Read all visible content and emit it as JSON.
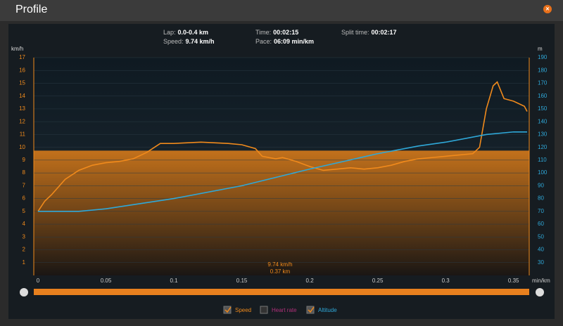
{
  "header": {
    "title": "Profile"
  },
  "stats": [
    {
      "label": "Lap:",
      "value": "0.0-0.4 km"
    },
    {
      "label": "Speed:",
      "value": "9.74 km/h"
    },
    {
      "label": "Time:",
      "value": "00:02:15"
    },
    {
      "label": "Pace:",
      "value": "06:09 min/km"
    },
    {
      "label": "Split time:",
      "value": "00:02:17"
    }
  ],
  "chart_data": {
    "type": "line",
    "y_label": "km/h",
    "y2_label": "m",
    "x_label": "min/km",
    "xlim": [
      0,
      0.36
    ],
    "xticks": [
      0,
      0.05,
      0.1,
      0.15,
      0.2,
      0.25,
      0.3,
      0.35
    ],
    "ylim": [
      0,
      17
    ],
    "yticks": [
      1,
      2,
      3,
      4,
      5,
      6,
      7,
      8,
      9,
      10,
      11,
      12,
      13,
      14,
      15,
      16,
      17
    ],
    "y2lim": [
      20,
      190
    ],
    "y2ticks": [
      30,
      40,
      50,
      60,
      70,
      80,
      90,
      100,
      110,
      120,
      130,
      140,
      150,
      160,
      170,
      180,
      190
    ],
    "average": {
      "value": 9.74,
      "label": "9.74 km/h"
    },
    "annotation": "0.37 km",
    "series": [
      {
        "name": "Speed",
        "color": "#f08a1c",
        "axis": "y",
        "x": [
          0,
          0.005,
          0.01,
          0.02,
          0.03,
          0.04,
          0.05,
          0.06,
          0.07,
          0.08,
          0.09,
          0.1,
          0.12,
          0.14,
          0.15,
          0.16,
          0.165,
          0.175,
          0.18,
          0.19,
          0.2,
          0.21,
          0.22,
          0.23,
          0.24,
          0.25,
          0.26,
          0.27,
          0.28,
          0.29,
          0.3,
          0.31,
          0.32,
          0.325,
          0.33,
          0.335,
          0.338,
          0.343,
          0.35,
          0.358,
          0.36
        ],
        "values": [
          5.0,
          5.8,
          6.3,
          7.5,
          8.2,
          8.6,
          8.8,
          8.9,
          9.1,
          9.6,
          10.3,
          10.3,
          10.4,
          10.3,
          10.2,
          9.9,
          9.3,
          9.1,
          9.2,
          8.9,
          8.5,
          8.2,
          8.3,
          8.4,
          8.3,
          8.4,
          8.6,
          8.9,
          9.1,
          9.2,
          9.3,
          9.4,
          9.5,
          10.0,
          13.0,
          14.8,
          15.1,
          13.8,
          13.6,
          13.2,
          12.8
        ]
      },
      {
        "name": "Heart rate",
        "color": "#b0307a",
        "axis": "y",
        "x": [],
        "values": []
      },
      {
        "name": "Altitude",
        "color": "#2fa8d8",
        "axis": "y2",
        "x": [
          0,
          0.03,
          0.05,
          0.1,
          0.15,
          0.2,
          0.25,
          0.28,
          0.3,
          0.33,
          0.35,
          0.36
        ],
        "values": [
          70,
          70,
          72,
          80,
          90,
          103,
          115,
          121,
          124,
          130,
          132,
          132
        ]
      }
    ]
  }
}
